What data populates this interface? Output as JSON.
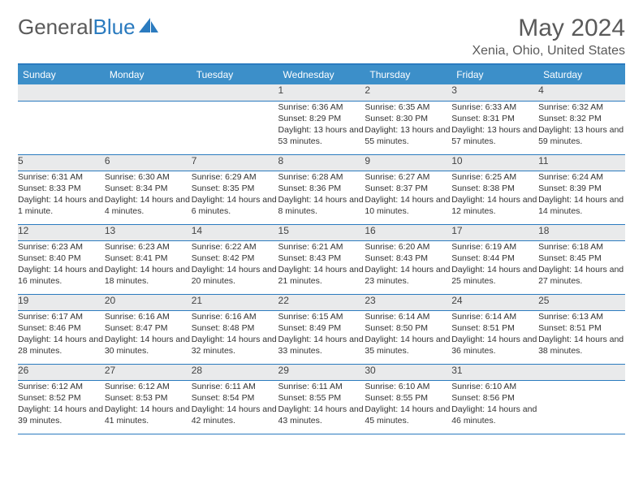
{
  "brand": {
    "part1": "General",
    "part2": "Blue"
  },
  "title": "May 2024",
  "location": "Xenia, Ohio, United States",
  "colors": {
    "header_bg": "#3c8fc9",
    "accent": "#2b7bbf",
    "daynum_bg": "#e9eaeb",
    "text": "#333333",
    "muted": "#5a5a5a"
  },
  "day_headers": [
    "Sunday",
    "Monday",
    "Tuesday",
    "Wednesday",
    "Thursday",
    "Friday",
    "Saturday"
  ],
  "weeks": [
    {
      "nums": [
        "",
        "",
        "",
        "1",
        "2",
        "3",
        "4"
      ],
      "info": [
        null,
        null,
        null,
        {
          "sunrise": "6:36 AM",
          "sunset": "8:29 PM",
          "daylight": "13 hours and 53 minutes."
        },
        {
          "sunrise": "6:35 AM",
          "sunset": "8:30 PM",
          "daylight": "13 hours and 55 minutes."
        },
        {
          "sunrise": "6:33 AM",
          "sunset": "8:31 PM",
          "daylight": "13 hours and 57 minutes."
        },
        {
          "sunrise": "6:32 AM",
          "sunset": "8:32 PM",
          "daylight": "13 hours and 59 minutes."
        }
      ]
    },
    {
      "nums": [
        "5",
        "6",
        "7",
        "8",
        "9",
        "10",
        "11"
      ],
      "info": [
        {
          "sunrise": "6:31 AM",
          "sunset": "8:33 PM",
          "daylight": "14 hours and 1 minute."
        },
        {
          "sunrise": "6:30 AM",
          "sunset": "8:34 PM",
          "daylight": "14 hours and 4 minutes."
        },
        {
          "sunrise": "6:29 AM",
          "sunset": "8:35 PM",
          "daylight": "14 hours and 6 minutes."
        },
        {
          "sunrise": "6:28 AM",
          "sunset": "8:36 PM",
          "daylight": "14 hours and 8 minutes."
        },
        {
          "sunrise": "6:27 AM",
          "sunset": "8:37 PM",
          "daylight": "14 hours and 10 minutes."
        },
        {
          "sunrise": "6:25 AM",
          "sunset": "8:38 PM",
          "daylight": "14 hours and 12 minutes."
        },
        {
          "sunrise": "6:24 AM",
          "sunset": "8:39 PM",
          "daylight": "14 hours and 14 minutes."
        }
      ]
    },
    {
      "nums": [
        "12",
        "13",
        "14",
        "15",
        "16",
        "17",
        "18"
      ],
      "info": [
        {
          "sunrise": "6:23 AM",
          "sunset": "8:40 PM",
          "daylight": "14 hours and 16 minutes."
        },
        {
          "sunrise": "6:23 AM",
          "sunset": "8:41 PM",
          "daylight": "14 hours and 18 minutes."
        },
        {
          "sunrise": "6:22 AM",
          "sunset": "8:42 PM",
          "daylight": "14 hours and 20 minutes."
        },
        {
          "sunrise": "6:21 AM",
          "sunset": "8:43 PM",
          "daylight": "14 hours and 21 minutes."
        },
        {
          "sunrise": "6:20 AM",
          "sunset": "8:43 PM",
          "daylight": "14 hours and 23 minutes."
        },
        {
          "sunrise": "6:19 AM",
          "sunset": "8:44 PM",
          "daylight": "14 hours and 25 minutes."
        },
        {
          "sunrise": "6:18 AM",
          "sunset": "8:45 PM",
          "daylight": "14 hours and 27 minutes."
        }
      ]
    },
    {
      "nums": [
        "19",
        "20",
        "21",
        "22",
        "23",
        "24",
        "25"
      ],
      "info": [
        {
          "sunrise": "6:17 AM",
          "sunset": "8:46 PM",
          "daylight": "14 hours and 28 minutes."
        },
        {
          "sunrise": "6:16 AM",
          "sunset": "8:47 PM",
          "daylight": "14 hours and 30 minutes."
        },
        {
          "sunrise": "6:16 AM",
          "sunset": "8:48 PM",
          "daylight": "14 hours and 32 minutes."
        },
        {
          "sunrise": "6:15 AM",
          "sunset": "8:49 PM",
          "daylight": "14 hours and 33 minutes."
        },
        {
          "sunrise": "6:14 AM",
          "sunset": "8:50 PM",
          "daylight": "14 hours and 35 minutes."
        },
        {
          "sunrise": "6:14 AM",
          "sunset": "8:51 PM",
          "daylight": "14 hours and 36 minutes."
        },
        {
          "sunrise": "6:13 AM",
          "sunset": "8:51 PM",
          "daylight": "14 hours and 38 minutes."
        }
      ]
    },
    {
      "nums": [
        "26",
        "27",
        "28",
        "29",
        "30",
        "31",
        ""
      ],
      "info": [
        {
          "sunrise": "6:12 AM",
          "sunset": "8:52 PM",
          "daylight": "14 hours and 39 minutes."
        },
        {
          "sunrise": "6:12 AM",
          "sunset": "8:53 PM",
          "daylight": "14 hours and 41 minutes."
        },
        {
          "sunrise": "6:11 AM",
          "sunset": "8:54 PM",
          "daylight": "14 hours and 42 minutes."
        },
        {
          "sunrise": "6:11 AM",
          "sunset": "8:55 PM",
          "daylight": "14 hours and 43 minutes."
        },
        {
          "sunrise": "6:10 AM",
          "sunset": "8:55 PM",
          "daylight": "14 hours and 45 minutes."
        },
        {
          "sunrise": "6:10 AM",
          "sunset": "8:56 PM",
          "daylight": "14 hours and 46 minutes."
        },
        null
      ]
    }
  ],
  "labels": {
    "sunrise": "Sunrise:",
    "sunset": "Sunset:",
    "daylight": "Daylight:"
  }
}
